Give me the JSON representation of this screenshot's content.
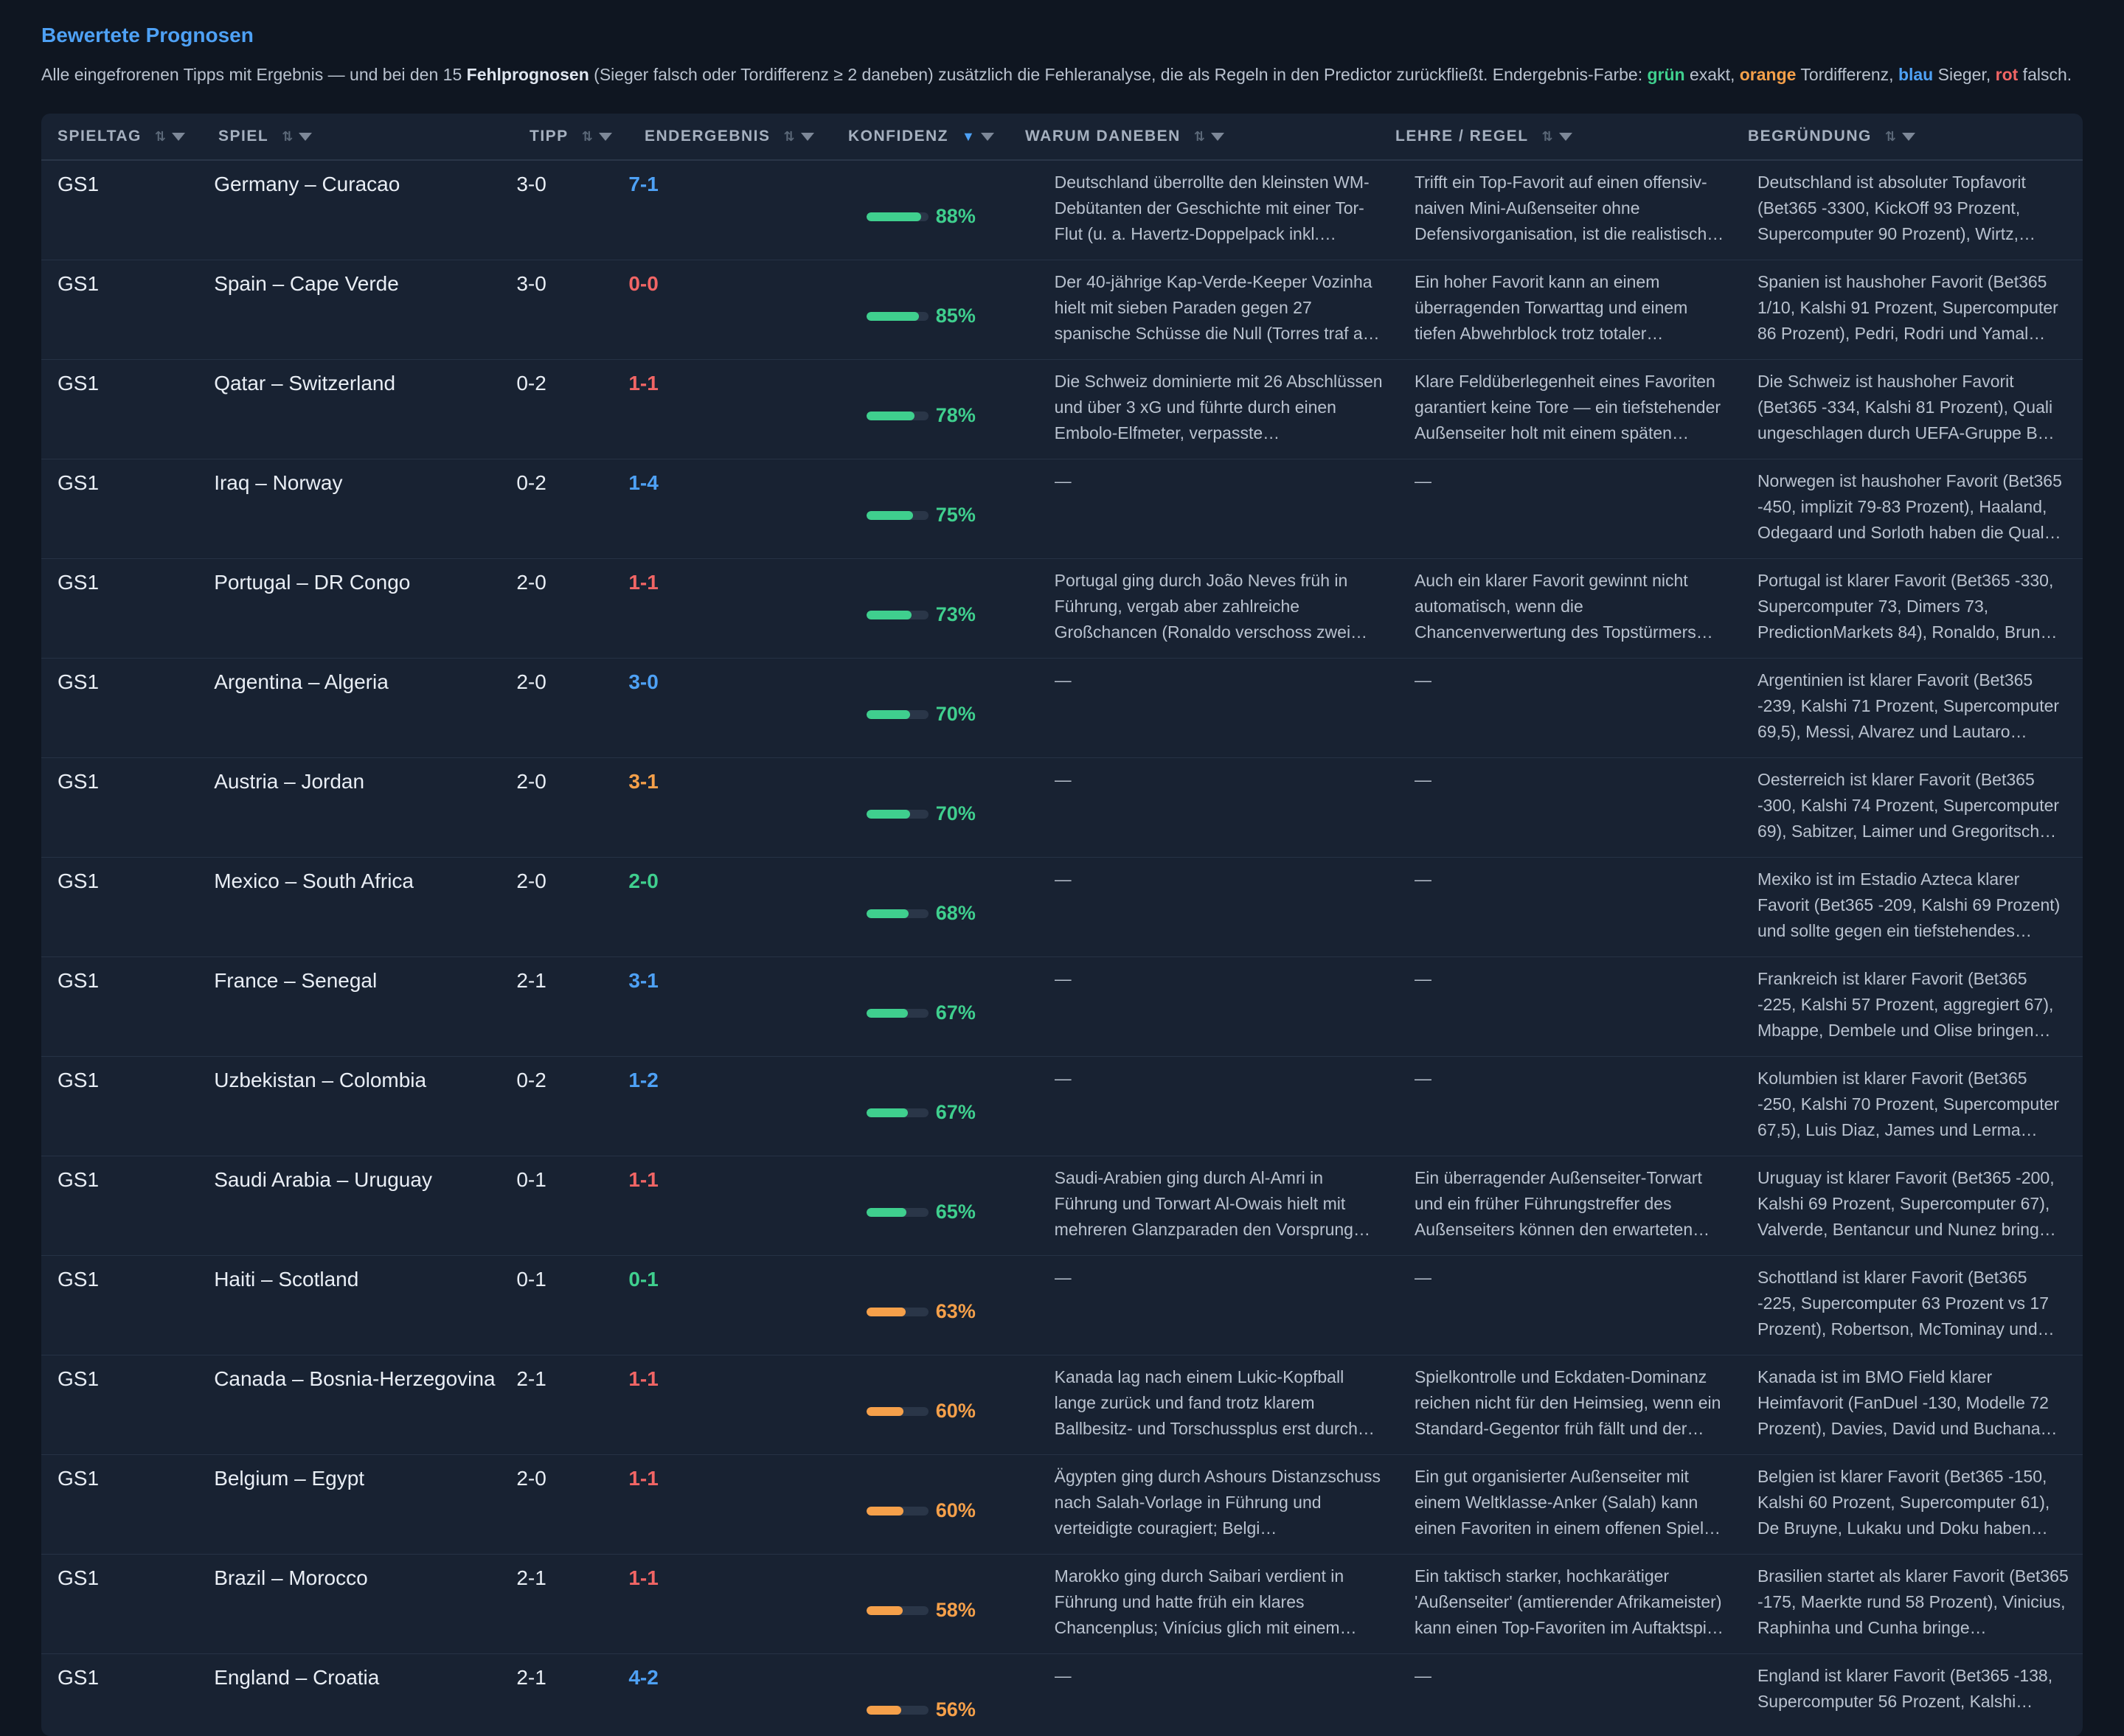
{
  "title": "Bewertete Prognosen",
  "intro": {
    "p1": "Alle eingefrorenen Tipps mit Ergebnis — und bei den 15 ",
    "bold1": "Fehlprognosen",
    "p2": " (Sieger falsch oder Tordifferenz ≥ 2 daneben) zusätzlich die Fehleranalyse, die als Regeln in den Predictor zurückfließt. Endergebnis-Farbe: ",
    "green": "grün",
    "p3": " exakt, ",
    "orange": "orange",
    "p4": " Tordifferenz, ",
    "blue": "blau",
    "p5": " Sieger, ",
    "red": "rot",
    "p6": " falsch."
  },
  "columns": [
    {
      "label": "SPIELTAG",
      "sort": "⇅"
    },
    {
      "label": "SPIEL",
      "sort": "⇅"
    },
    {
      "label": "TIPP",
      "sort": "⇅"
    },
    {
      "label": "ENDERGEBNIS",
      "sort": "⇅"
    },
    {
      "label": "KONFIDENZ",
      "sort": "▼"
    },
    {
      "label": "WARUM DANEBEN",
      "sort": "⇅"
    },
    {
      "label": "LEHRE / REGEL",
      "sort": "⇅"
    },
    {
      "label": "BEGRÜNDUNG",
      "sort": "⇅"
    }
  ],
  "colors": {
    "green": "#3fcf8e",
    "orange": "#f5a04a",
    "blue": "#4ea1f5",
    "red": "#f16565"
  },
  "rows": [
    {
      "day": "GS1",
      "match": "Germany – Curacao",
      "tip": "3-0",
      "result": "7-1",
      "rc": "blue",
      "conf": 0.88,
      "pct": "88%",
      "cc": "green",
      "why": "Deutschland überrollte den kleinsten WM-Debütanten der Geschichte mit einer Tor-Flut (u. a. Havertz-Doppelpack inkl.…",
      "rule": "Trifft ein Top-Favorit auf einen offensiv-naiven Mini-Außenseiter ohne Defensivorganisation, ist die realistisch…",
      "reason": "Deutschland ist absoluter Topfavorit (Bet365 -3300, KickOff 93 Prozent, Supercomputer 90 Prozent), Wirtz,…"
    },
    {
      "day": "GS1",
      "match": "Spain – Cape Verde",
      "tip": "3-0",
      "result": "0-0",
      "rc": "red",
      "conf": 0.85,
      "pct": "85%",
      "cc": "green",
      "why": "Der 40-jährige Kap-Verde-Keeper Vozinha hielt mit sieben Paraden gegen 27 spanische Schüsse die Null (Torres traf a…",
      "rule": "Ein hoher Favorit kann an einem überragenden Torwarttag und einem tiefen Abwehrblock trotz totaler…",
      "reason": "Spanien ist haushoher Favorit (Bet365 1/10, Kalshi 91 Prozent, Supercomputer 86 Prozent), Pedri, Rodri und Yamal…"
    },
    {
      "day": "GS1",
      "match": "Qatar – Switzerland",
      "tip": "0-2",
      "result": "1-1",
      "rc": "red",
      "conf": 0.78,
      "pct": "78%",
      "cc": "green",
      "why": "Die Schweiz dominierte mit 26 Abschlüssen und über 3 xG und führte durch einen Embolo-Elfmeter, verpasste…",
      "rule": "Klare Feldüberlegenheit eines Favoriten garantiert keine Tore — ein tiefstehender Außenseiter holt mit einem späten…",
      "reason": "Die Schweiz ist haushoher Favorit (Bet365 -334, Kalshi 81 Prozent), Quali ungeschlagen durch UEFA-Gruppe B…"
    },
    {
      "day": "GS1",
      "match": "Iraq – Norway",
      "tip": "0-2",
      "result": "1-4",
      "rc": "blue",
      "conf": 0.75,
      "pct": "75%",
      "cc": "green",
      "why": "—",
      "rule": "—",
      "reason": "Norwegen ist haushoher Favorit (Bet365 -450, implizit 79-83 Prozent), Haaland, Odegaard und Sorloth haben die Qual…"
    },
    {
      "day": "GS1",
      "match": "Portugal – DR Congo",
      "tip": "2-0",
      "result": "1-1",
      "rc": "red",
      "conf": 0.73,
      "pct": "73%",
      "cc": "green",
      "why": "Portugal ging durch João Neves früh in Führung, vergab aber zahlreiche Großchancen (Ronaldo verschoss zwei…",
      "rule": "Auch ein klarer Favorit gewinnt nicht automatisch, wenn die Chancenverwertung des Topstürmers…",
      "reason": "Portugal ist klarer Favorit (Bet365 -330, Supercomputer 73, Dimers 73, PredictionMarkets 84), Ronaldo, Brun…"
    },
    {
      "day": "GS1",
      "match": "Argentina – Algeria",
      "tip": "2-0",
      "result": "3-0",
      "rc": "blue",
      "conf": 0.7,
      "pct": "70%",
      "cc": "green",
      "why": "—",
      "rule": "—",
      "reason": "Argentinien ist klarer Favorit (Bet365 -239, Kalshi 71 Prozent, Supercomputer 69,5), Messi, Alvarez und Lautaro…"
    },
    {
      "day": "GS1",
      "match": "Austria – Jordan",
      "tip": "2-0",
      "result": "3-1",
      "rc": "orange",
      "conf": 0.7,
      "pct": "70%",
      "cc": "green",
      "why": "—",
      "rule": "—",
      "reason": "Oesterreich ist klarer Favorit (Bet365 -300, Kalshi 74 Prozent, Supercomputer 69), Sabitzer, Laimer und Gregoritsch…"
    },
    {
      "day": "GS1",
      "match": "Mexico – South Africa",
      "tip": "2-0",
      "result": "2-0",
      "rc": "green",
      "conf": 0.68,
      "pct": "68%",
      "cc": "green",
      "why": "—",
      "rule": "—",
      "reason": "Mexiko ist im Estadio Azteca klarer Favorit (Bet365 -209, Kalshi 69 Prozent) und sollte gegen ein tiefstehendes…"
    },
    {
      "day": "GS1",
      "match": "France – Senegal",
      "tip": "2-1",
      "result": "3-1",
      "rc": "blue",
      "conf": 0.67,
      "pct": "67%",
      "cc": "green",
      "why": "—",
      "rule": "—",
      "reason": "Frankreich ist klarer Favorit (Bet365 -225, Kalshi 57 Prozent, aggregiert 67), Mbappe, Dembele und Olise bringen…"
    },
    {
      "day": "GS1",
      "match": "Uzbekistan – Colombia",
      "tip": "0-2",
      "result": "1-2",
      "rc": "blue",
      "conf": 0.67,
      "pct": "67%",
      "cc": "green",
      "why": "—",
      "rule": "—",
      "reason": "Kolumbien ist klarer Favorit (Bet365 -250, Kalshi 70 Prozent, Supercomputer 67,5), Luis Diaz, James und Lerma…"
    },
    {
      "day": "GS1",
      "match": "Saudi Arabia – Uruguay",
      "tip": "0-1",
      "result": "1-1",
      "rc": "red",
      "conf": 0.65,
      "pct": "65%",
      "cc": "green",
      "why": "Saudi-Arabien ging durch Al-Amri in Führung und Torwart Al-Owais hielt mit mehreren Glanzparaden den Vorsprung…",
      "rule": "Ein überragender Außenseiter-Torwart und ein früher Führungstreffer des Außenseiters können den erwarteten…",
      "reason": "Uruguay ist klarer Favorit (Bet365 -200, Kalshi 69 Prozent, Supercomputer 67), Valverde, Bentancur und Nunez bring…"
    },
    {
      "day": "GS1",
      "match": "Haiti – Scotland",
      "tip": "0-1",
      "result": "0-1",
      "rc": "green",
      "conf": 0.63,
      "pct": "63%",
      "cc": "orange",
      "why": "—",
      "rule": "—",
      "reason": "Schottland ist klarer Favorit (Bet365 -225, Supercomputer 63 Prozent vs 17 Prozent), Robertson, McTominay und…"
    },
    {
      "day": "GS1",
      "match": "Canada – Bosnia-Herzegovina",
      "tip": "2-1",
      "result": "1-1",
      "rc": "red",
      "conf": 0.6,
      "pct": "60%",
      "cc": "orange",
      "why": "Kanada lag nach einem Lukic-Kopfball lange zurück und fand trotz klarem Ballbesitz- und Torschussplus erst durch…",
      "rule": "Spielkontrolle und Eckdaten-Dominanz reichen nicht für den Heimsieg, wenn ein Standard-Gegentor früh fällt und der…",
      "reason": "Kanada ist im BMO Field klarer Heimfavorit (FanDuel -130, Modelle 72 Prozent), Davies, David und Buchana…"
    },
    {
      "day": "GS1",
      "match": "Belgium – Egypt",
      "tip": "2-0",
      "result": "1-1",
      "rc": "red",
      "conf": 0.6,
      "pct": "60%",
      "cc": "orange",
      "why": "Ägypten ging durch Ashours Distanzschuss nach Salah-Vorlage in Führung und verteidigte couragiert; Belgi…",
      "rule": "Ein gut organisierter Außenseiter mit einem Weltklasse-Anker (Salah) kann einen Favoriten in einem offenen Spiel…",
      "reason": "Belgien ist klarer Favorit (Bet365 -150, Kalshi 60 Prozent, Supercomputer 61), De Bruyne, Lukaku und Doku haben…"
    },
    {
      "day": "GS1",
      "match": "Brazil – Morocco",
      "tip": "2-1",
      "result": "1-1",
      "rc": "red",
      "conf": 0.58,
      "pct": "58%",
      "cc": "orange",
      "why": "Marokko ging durch Saibari verdient in Führung und hatte früh ein klares Chancenplus; Vinícius glich mit einem…",
      "rule": "Ein taktisch starker, hochkarätiger 'Außenseiter' (amtierender Afrikameister) kann einen Top-Favoriten im Auftaktspi…",
      "reason": "Brasilien startet als klarer Favorit (Bet365 -175, Maerkte rund 58 Prozent), Vinicius, Raphinha und Cunha bringe…"
    },
    {
      "day": "GS1",
      "match": "England – Croatia",
      "tip": "2-1",
      "result": "4-2",
      "rc": "blue",
      "conf": 0.56,
      "pct": "56%",
      "cc": "orange",
      "why": "—",
      "rule": "—",
      "reason": "England ist klarer Favorit (Bet365 -138, Supercomputer 56 Prozent, Kalshi…"
    }
  ]
}
